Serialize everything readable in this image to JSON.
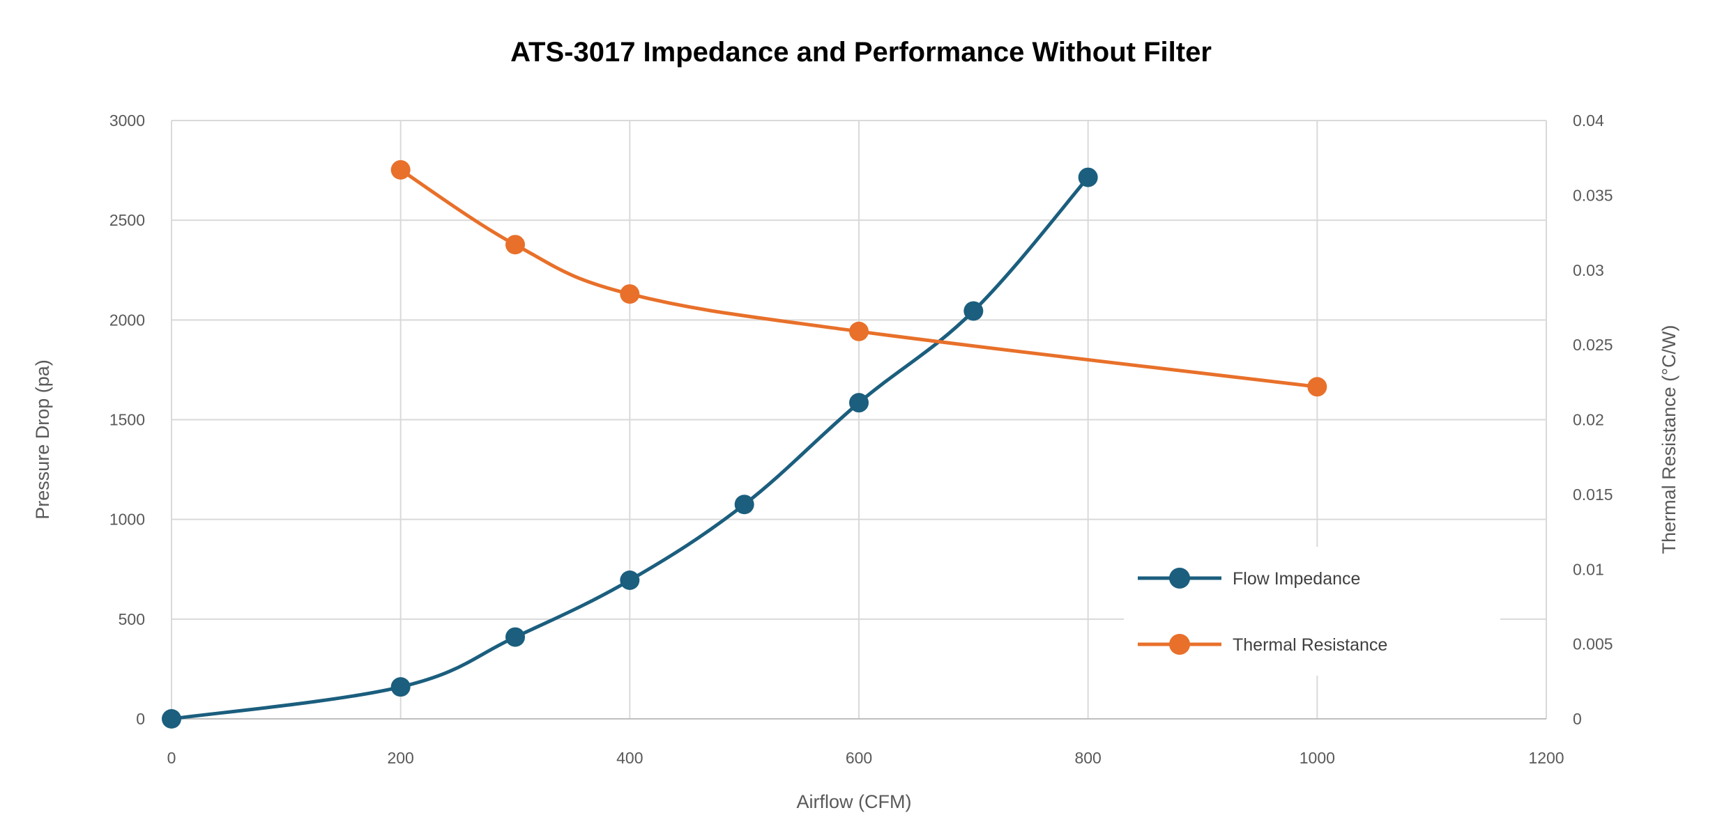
{
  "chart_data": {
    "type": "line",
    "title": "ATS-3017 Impedance and Performance Without Filter",
    "xlabel": "Airflow (CFM)",
    "ylabel": "Pressure Drop (pa)",
    "y2label": "Thermal Resistance (°C/W)",
    "xlim": [
      0,
      1200
    ],
    "ylim": [
      0,
      3000
    ],
    "y2lim": [
      0,
      0.04
    ],
    "x_ticks": [
      0,
      200,
      400,
      600,
      800,
      1000,
      1200
    ],
    "x_tick_labels": [
      "0",
      "200",
      "400",
      "600",
      "800",
      "1000",
      "1200"
    ],
    "y_ticks": [
      0,
      500,
      1000,
      1500,
      2000,
      2500,
      3000
    ],
    "y_tick_labels": [
      "0",
      "500",
      "1000",
      "1500",
      "2000",
      "2500",
      "3000"
    ],
    "y2_ticks": [
      0,
      0.005,
      0.01,
      0.015,
      0.02,
      0.025,
      0.03,
      0.035,
      0.04
    ],
    "y2_tick_labels": [
      "0",
      "0.005",
      "0.01",
      "0.015",
      "0.02",
      "0.025",
      "0.03",
      "0.035",
      "0.04"
    ],
    "grid": true,
    "legend_position": "bottom-right",
    "series": [
      {
        "name": "Flow Impedance",
        "axis": "left",
        "color": "#1B5E7E",
        "x": [
          0,
          200,
          300,
          400,
          500,
          600,
          700,
          800
        ],
        "values": [
          0,
          160,
          410,
          695,
          1075,
          1585,
          2045,
          2715
        ]
      },
      {
        "name": "Thermal Resistance",
        "axis": "right",
        "color": "#E8702A",
        "x": [
          200,
          300,
          400,
          600,
          1000
        ],
        "values": [
          0.0367,
          0.0317,
          0.0284,
          0.0259,
          0.0222
        ]
      }
    ]
  }
}
